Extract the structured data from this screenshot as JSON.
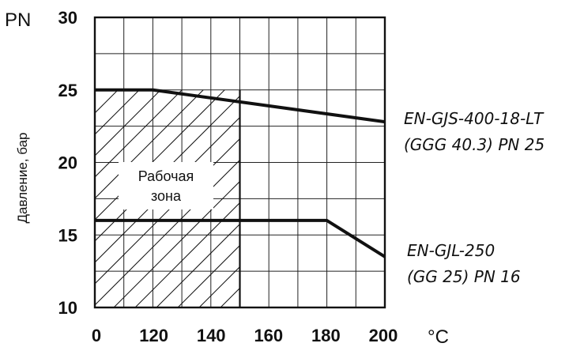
{
  "chart_data": {
    "type": "line",
    "ylabel": "Давление, бар",
    "y_unit": "PN",
    "x_unit": "°C",
    "xlim": [
      0,
      200
    ],
    "ylim": [
      10,
      30
    ],
    "x_ticks": [
      "0",
      "120",
      "140",
      "160",
      "180",
      "200"
    ],
    "y_ticks": [
      "10",
      "15",
      "20",
      "25",
      "30"
    ],
    "grid": true,
    "series": [
      {
        "label_lines": [
          "EN-GJS-400-18-LT",
          "(GGG 40.3) PN 25"
        ],
        "points": [
          [
            0,
            25
          ],
          [
            40,
            25
          ],
          [
            200,
            22.8
          ]
        ]
      },
      {
        "label_lines": [
          "EN-GJL-250",
          "(GG 25) PN 16"
        ],
        "points": [
          [
            0,
            16
          ],
          [
            160,
            16
          ],
          [
            200,
            13.5
          ]
        ]
      }
    ],
    "working_zone": {
      "label_lines": [
        "Рабочая",
        "зона"
      ],
      "x_range": [
        0,
        100
      ],
      "y_range": [
        10,
        25
      ]
    },
    "colors": {
      "line": "#111111",
      "grid": "#222222",
      "background": "#ffffff"
    }
  }
}
